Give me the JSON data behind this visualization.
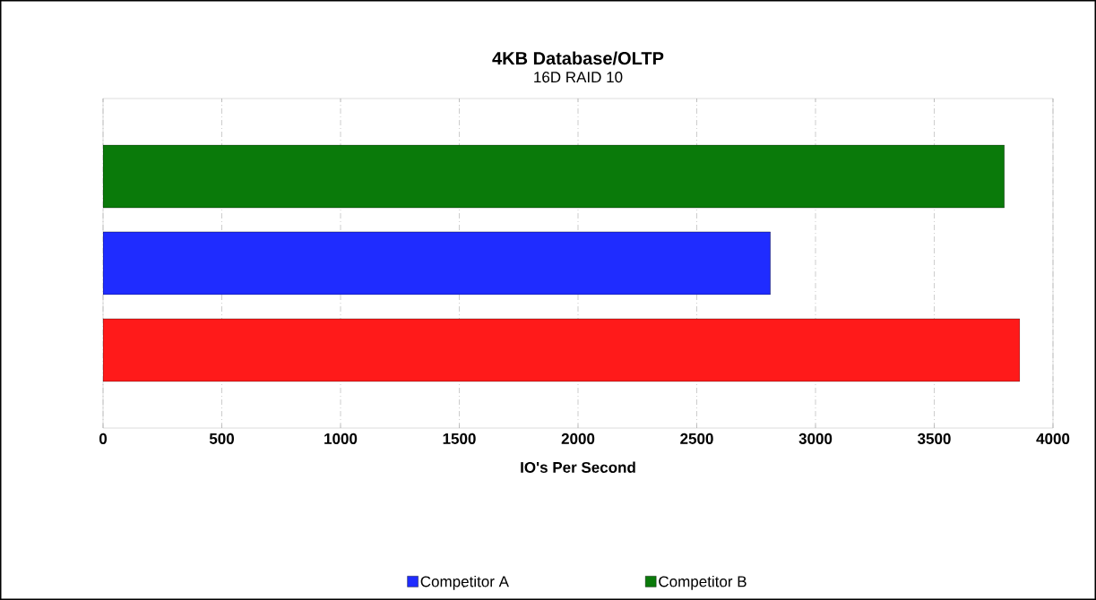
{
  "chart_data": {
    "type": "bar",
    "orientation": "horizontal",
    "title": "4KB Database/OLTP",
    "subtitle": "16D RAID 10",
    "xlabel": "IO's Per Second",
    "categories": [
      null
    ],
    "series": [
      {
        "color": "#ff1a1a",
        "values": [
          3860
        ]
      },
      {
        "name": "Competitor A",
        "color": "#1f2cff",
        "values": [
          2810
        ]
      },
      {
        "name": "Competitor B",
        "color": "#0a7a0a",
        "values": [
          3795
        ]
      }
    ],
    "xlim": [
      0,
      4000
    ],
    "xticks": [
      0,
      500,
      1000,
      1500,
      2000,
      2500,
      3000,
      3500,
      4000
    ],
    "grid": "x",
    "legend": "bottom"
  }
}
